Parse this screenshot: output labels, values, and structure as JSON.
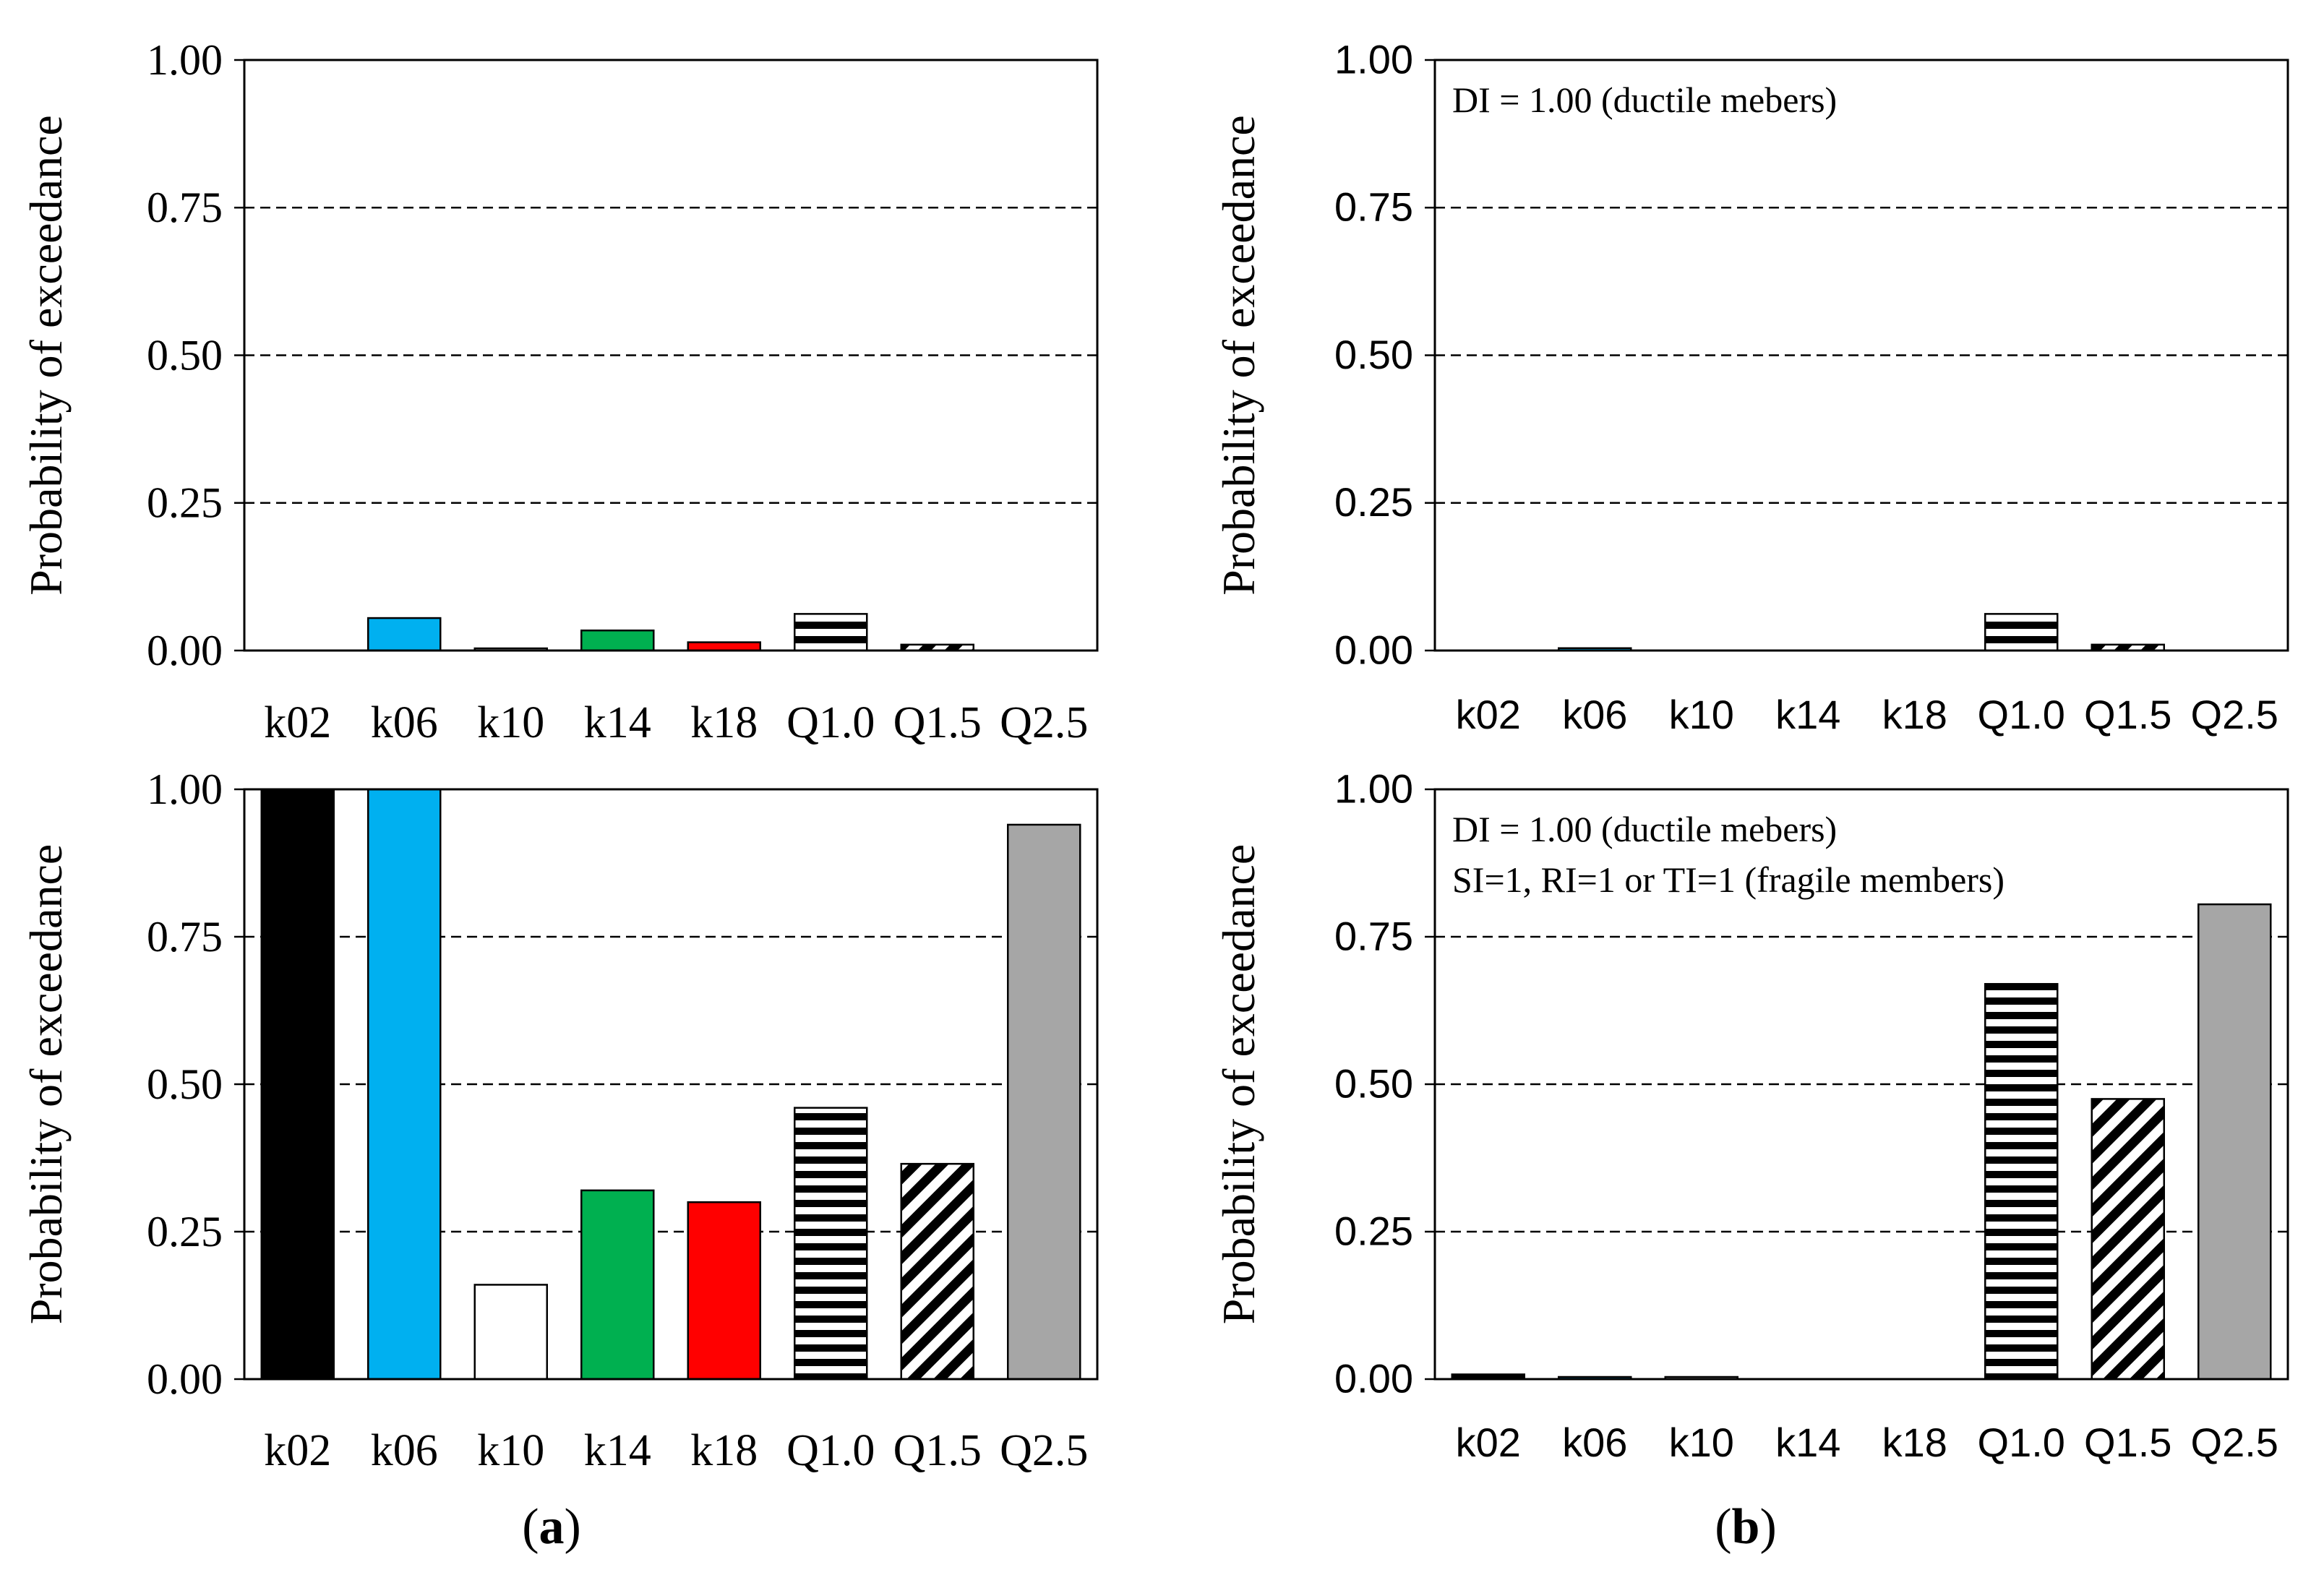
{
  "figure": {
    "panel_a_label_pre": "(",
    "panel_a_label_letter": "a",
    "panel_a_label_post": ")",
    "panel_b_label_pre": "(",
    "panel_b_label_letter": "b",
    "panel_b_label_post": ")"
  },
  "colors": {
    "k02": "#000000",
    "k06": "#00b0f0",
    "k10": "#ffffff",
    "k14": "#00b050",
    "k18": "#ff0000",
    "Q1.0": "pattern-horizontal-stripes",
    "Q1.5": "pattern-diagonal-stripes",
    "Q2.5": "#a6a6a6",
    "gridline": "#000000",
    "axis": "#000000"
  },
  "chart_data": [
    {
      "id": "a-top",
      "type": "bar",
      "ylabel": "Probability of exceedance",
      "ylim": [
        0,
        1
      ],
      "yticks": [
        "0.00",
        "0.25",
        "0.50",
        "0.75",
        "1.00"
      ],
      "grid": "dashed horizontal",
      "categories": [
        "k02",
        "k06",
        "k10",
        "k14",
        "k18",
        "Q1.0",
        "Q1.5",
        "Q2.5"
      ],
      "values": [
        0.0,
        0.055,
        0.002,
        0.034,
        0.014,
        0.062,
        0.01,
        0.0
      ],
      "annotations": []
    },
    {
      "id": "b-top",
      "type": "bar",
      "ylabel": "Probability of exceedance",
      "ylim": [
        0,
        1
      ],
      "yticks": [
        "0.00",
        "0.25",
        "0.50",
        "0.75",
        "1.00"
      ],
      "grid": "dashed horizontal",
      "categories": [
        "k02",
        "k06",
        "k10",
        "k14",
        "k18",
        "Q1.0",
        "Q1.5",
        "Q2.5"
      ],
      "values": [
        0.0,
        0.004,
        0.0,
        0.0,
        0.0,
        0.062,
        0.01,
        0.0
      ],
      "annotations": [
        "DI = 1.00 (ductile mebers)"
      ]
    },
    {
      "id": "a-bottom",
      "type": "bar",
      "ylabel": "Probability of exceedance",
      "ylim": [
        0,
        1
      ],
      "yticks": [
        "0.00",
        "0.25",
        "0.50",
        "0.75",
        "1.00"
      ],
      "grid": "dashed horizontal",
      "categories": [
        "k02",
        "k06",
        "k10",
        "k14",
        "k18",
        "Q1.0",
        "Q1.5",
        "Q2.5"
      ],
      "values": [
        1.0,
        1.0,
        0.16,
        0.32,
        0.3,
        0.46,
        0.365,
        0.94
      ],
      "annotations": []
    },
    {
      "id": "b-bottom",
      "type": "bar",
      "ylabel": "Probability of exceedance",
      "ylim": [
        0,
        1
      ],
      "yticks": [
        "0.00",
        "0.25",
        "0.50",
        "0.75",
        "1.00"
      ],
      "grid": "dashed horizontal",
      "categories": [
        "k02",
        "k06",
        "k10",
        "k14",
        "k18",
        "Q1.0",
        "Q1.5",
        "Q2.5"
      ],
      "values": [
        0.008,
        0.003,
        0.001,
        0.0,
        0.0,
        0.67,
        0.475,
        0.805
      ],
      "annotations": [
        "DI = 1.00 (ductile mebers)",
        "SI=1, RI=1 or TI=1 (fragile members)"
      ]
    }
  ]
}
